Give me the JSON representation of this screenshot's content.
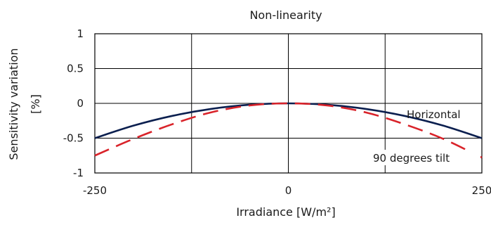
{
  "chart_data": {
    "type": "line",
    "title": "Non-linearity",
    "xlabel": "Irradiance [W/m²]",
    "ylabel_line1": "Sensitivity variation",
    "ylabel_line2": "[%]",
    "xlim": [
      -250,
      250
    ],
    "ylim": [
      -1,
      1
    ],
    "x_ticks": [
      -250,
      0,
      250
    ],
    "x_tick_labels": [
      "-250",
      "0",
      "250"
    ],
    "x_grid": [
      -250,
      -125,
      0,
      125,
      250
    ],
    "y_ticks": [
      1,
      0.5,
      0,
      -0.5,
      -1
    ],
    "y_tick_labels": [
      "1",
      "0.5",
      "0",
      "-0.5",
      "-1"
    ],
    "grid": true,
    "series": [
      {
        "name": "Horizontal",
        "color": "#0b1f4f",
        "style": "solid",
        "x": [
          -250,
          -200,
          -150,
          -100,
          -50,
          0,
          50,
          100,
          150,
          200,
          250
        ],
        "y": [
          -0.5,
          -0.32,
          -0.18,
          -0.08,
          -0.02,
          0,
          -0.02,
          -0.08,
          -0.18,
          -0.32,
          -0.5
        ]
      },
      {
        "name": "90 degrees tilt",
        "color": "#d9232a",
        "style": "dashed",
        "x": [
          -250,
          -200,
          -150,
          -100,
          -50,
          0,
          50,
          100,
          150,
          200,
          250
        ],
        "y": [
          -0.75,
          -0.51,
          -0.3,
          -0.13,
          -0.03,
          0,
          -0.03,
          -0.13,
          -0.3,
          -0.51,
          -0.78
        ]
      }
    ]
  }
}
